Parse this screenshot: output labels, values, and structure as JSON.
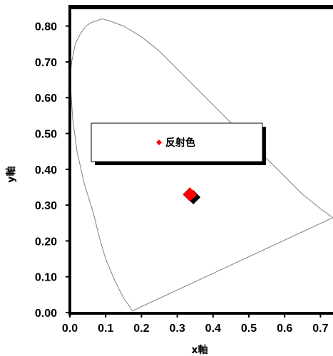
{
  "chart_data": {
    "type": "scatter",
    "xlabel": "x軸",
    "ylabel": "y軸",
    "xlim": [
      0.0,
      0.72
    ],
    "ylim": [
      0.0,
      0.83
    ],
    "x_ticks": [
      "0.0",
      "0.1",
      "0.2",
      "0.3",
      "0.4",
      "0.5",
      "0.6",
      "0.7"
    ],
    "x_tick_values": [
      0.0,
      0.1,
      0.2,
      0.3,
      0.4,
      0.5,
      0.6,
      0.7
    ],
    "y_ticks": [
      "0.00",
      "0.10",
      "0.20",
      "0.30",
      "0.40",
      "0.50",
      "0.60",
      "0.70",
      "0.80"
    ],
    "y_tick_values": [
      0.0,
      0.1,
      0.2,
      0.3,
      0.4,
      0.5,
      0.6,
      0.7,
      0.8
    ],
    "grid": false,
    "legend_position": "center-left",
    "locus_color": "#808080",
    "series": [
      {
        "name": "反射色",
        "color": "#ff0000",
        "shadow_color": "#000000",
        "marker": "diamond",
        "points": [
          {
            "x": 0.335,
            "y": 0.33
          }
        ]
      }
    ],
    "spectral_locus": [
      [
        0.175,
        0.005
      ],
      [
        0.172,
        0.008
      ],
      [
        0.165,
        0.02
      ],
      [
        0.15,
        0.04
      ],
      [
        0.125,
        0.09
      ],
      [
        0.1,
        0.15
      ],
      [
        0.085,
        0.2
      ],
      [
        0.065,
        0.28
      ],
      [
        0.04,
        0.36
      ],
      [
        0.02,
        0.45
      ],
      [
        0.008,
        0.54
      ],
      [
        0.002,
        0.63
      ],
      [
        0.002,
        0.67
      ],
      [
        0.005,
        0.7
      ],
      [
        0.015,
        0.75
      ],
      [
        0.03,
        0.78
      ],
      [
        0.045,
        0.8
      ],
      [
        0.06,
        0.81
      ],
      [
        0.075,
        0.815
      ],
      [
        0.09,
        0.82
      ],
      [
        0.11,
        0.815
      ],
      [
        0.15,
        0.8
      ],
      [
        0.2,
        0.77
      ],
      [
        0.25,
        0.73
      ],
      [
        0.3,
        0.68
      ],
      [
        0.4,
        0.58
      ],
      [
        0.5,
        0.48
      ],
      [
        0.6,
        0.38
      ],
      [
        0.65,
        0.33
      ],
      [
        0.7,
        0.29
      ],
      [
        0.735,
        0.265
      ]
    ]
  }
}
